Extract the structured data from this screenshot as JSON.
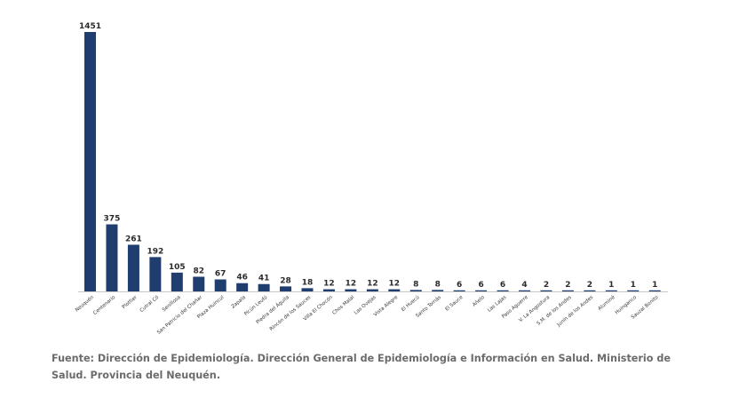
{
  "chart_data": {
    "type": "bar",
    "categories": [
      "Neuquén",
      "Centenario",
      "Plottier",
      "Cutral Có",
      "Senillosa",
      "San Patricio del Chañar",
      "Plaza Huincul",
      "Zapala",
      "Picún Leufú",
      "Piedra del Águila",
      "Rincón de los Sauces",
      "Villa El Chocón",
      "Chos Malal",
      "Las Ovejas",
      "Vista Alegre",
      "El Huecú",
      "Santo Tomás",
      "El Sauce",
      "Añelo",
      "Las Lajas",
      "Paso Aguerre",
      "V. La Angostura",
      "S.M. de los Andes",
      "Junín de los Andes",
      "Aluminé",
      "Huinganco",
      "Sauzal Bonito"
    ],
    "values": [
      1451,
      375,
      261,
      192,
      105,
      82,
      67,
      46,
      41,
      28,
      18,
      12,
      12,
      12,
      12,
      8,
      8,
      6,
      6,
      6,
      4,
      2,
      2,
      2,
      1,
      1,
      1
    ],
    "title": "",
    "xlabel": "",
    "ylabel": "",
    "ylim": [
      0,
      1451
    ],
    "grid": false,
    "legend": "none",
    "bar_color": "#1f3d6e",
    "axis_color": "#c8c8c8"
  },
  "source_note": "Fuente: Dirección de Epidemiología. Dirección General de Epidemiología e Información en Salud. Ministerio de Salud. Provincia del Neuquén."
}
